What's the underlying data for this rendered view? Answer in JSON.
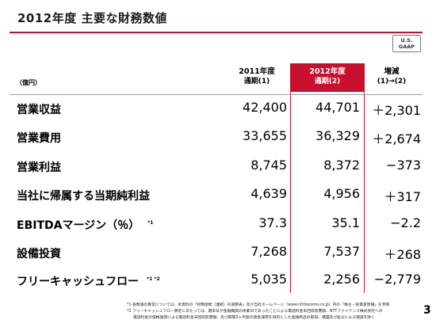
{
  "title": "2012年度 主要な財務数値",
  "badge": {
    "line1": "U.S.",
    "line2": "GAAP"
  },
  "unit": "（億円）",
  "columns": [
    {
      "line1": "2011年度",
      "line2": "通期(1)"
    },
    {
      "line1": "2012年度",
      "line2": "通期(2)"
    },
    {
      "line1": "増減",
      "line2": "(1)→(2)"
    }
  ],
  "rows": [
    {
      "label": "営業収益",
      "note": "",
      "v2011": "42,400",
      "v2012": "44,701",
      "diff": "＋2,301"
    },
    {
      "label": "営業費用",
      "note": "",
      "v2011": "33,655",
      "v2012": "36,329",
      "diff": "＋2,674"
    },
    {
      "label": "営業利益",
      "note": "",
      "v2011": "8,745",
      "v2012": "8,372",
      "diff": "−373"
    },
    {
      "label": "当社に帰属する当期純利益",
      "note": "",
      "v2011": "4,639",
      "v2012": "4,956",
      "diff": "＋317"
    },
    {
      "label": "EBITDAマージン（％）",
      "note": "*1",
      "v2011": "37.3",
      "v2012": "35.1",
      "diff": "−2.2"
    },
    {
      "label": "設備投資",
      "note": "",
      "v2011": "7,268",
      "v2012": "7,537",
      "diff": "＋268"
    },
    {
      "label": "フリーキャッシュフロー",
      "note": "*1 *2",
      "v2011": "5,035",
      "v2012": "2,256",
      "diff": "−2,779"
    }
  ],
  "footnotes": [
    "*1 各数値の算定については、本資料の「財務指標（連結）の調整表」及び当社ホームページ（www.nttdocomo.co.jp）内の「株主・投資家情報」を参照",
    "*2 フリーキャッシュフロー算定にあたっては、期末日が金融機関の休業日であったことによる電話料金未回収影響額、NTTファイナンス株式会社への",
    "電話料金の債権譲渡による電話料金未回収影響額、及び期間3ヶ月超の資金運用を目的とした金融商品の取得、償還及び処分による増減を除く"
  ],
  "page_number": "3"
}
